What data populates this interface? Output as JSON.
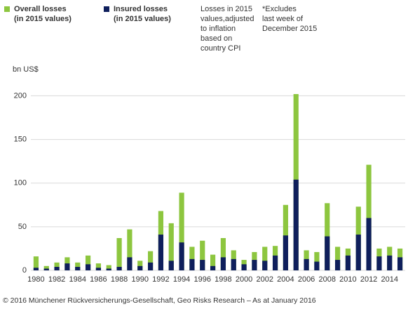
{
  "chart_data": {
    "type": "bar",
    "y_label": "bn US$",
    "notes": [
      [
        "Losses in 2015",
        "values,adjusted",
        "to inflation",
        "based on",
        "country CPI"
      ],
      [
        "*Excludes",
        "last week of",
        "December 2015"
      ]
    ],
    "footer": "© 2016 Münchener Rückversicherungs-Gesellschaft, Geo Risks Research – As at January 2016",
    "categories": [
      "1980",
      null,
      "1982",
      null,
      "1984",
      null,
      "1986",
      null,
      "1988",
      null,
      "1990",
      null,
      "1992",
      null,
      "1994",
      null,
      "1996",
      null,
      "1998",
      null,
      "2000",
      null,
      "2002",
      null,
      "2004",
      null,
      "2006",
      null,
      "2008",
      null,
      "2010",
      null,
      "2012",
      null,
      "2014",
      null
    ],
    "series": [
      {
        "name": "Overall losses",
        "subname": "(in 2015 values)",
        "color": "#8dc63f",
        "values": [
          16,
          5,
          9,
          15,
          9,
          17,
          8,
          6,
          37,
          47,
          11,
          22,
          68,
          54,
          89,
          27,
          34,
          18,
          37,
          23,
          12,
          21,
          27,
          28,
          75,
          202,
          23,
          21,
          77,
          27,
          25,
          73,
          121,
          25,
          27,
          25
        ]
      },
      {
        "name": "Insured losses",
        "subname": "(in 2015 values)",
        "color": "#0f1f5c",
        "values": [
          3,
          2,
          4,
          8,
          4,
          7,
          3,
          2,
          4,
          15,
          5,
          9,
          41,
          11,
          32,
          13,
          12,
          5,
          15,
          13,
          7,
          12,
          11,
          17,
          40,
          104,
          13,
          10,
          39,
          12,
          17,
          41,
          60,
          16,
          17,
          15
        ]
      }
    ],
    "overlap": true,
    "ylim": [
      0,
      210
    ],
    "yticks": [
      0,
      50,
      100,
      150,
      200
    ],
    "grid": true
  }
}
